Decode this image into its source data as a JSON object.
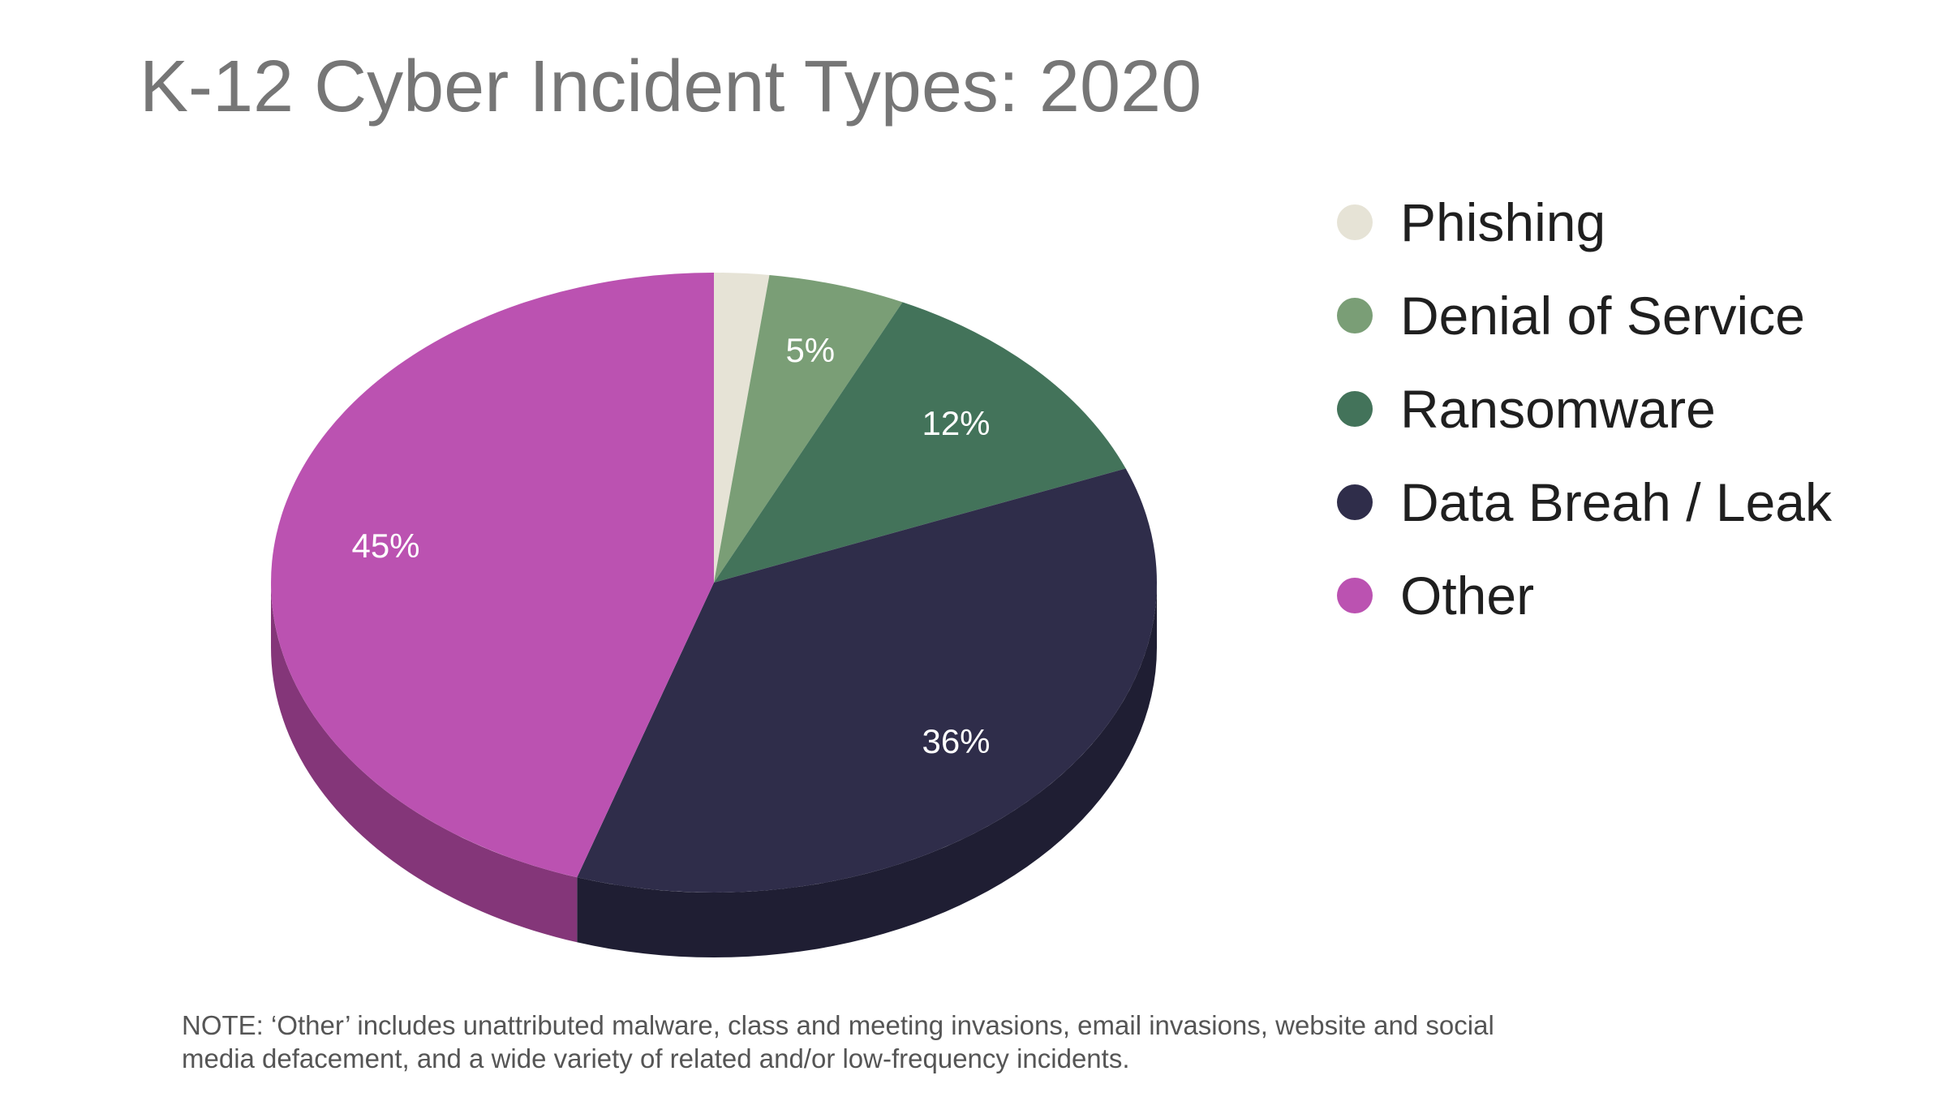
{
  "chart_data": {
    "type": "pie",
    "title": "K-12 Cyber Incident Types: 2020",
    "categories": [
      "Phishing",
      "Denial of Service",
      "Ransomware",
      "Data Breah / Leak",
      "Other"
    ],
    "values": [
      2,
      5,
      12,
      36,
      45
    ],
    "data_labels": [
      "",
      "5%",
      "12%",
      "36%",
      "45%"
    ],
    "colors": [
      "#e6e3d6",
      "#7a9e76",
      "#43735a",
      "#2f2d4a",
      "#bb52b1"
    ],
    "side_colors": [
      "#b8b5a8",
      "#5c7a58",
      "#2f5541",
      "#1f1e33",
      "#843679"
    ],
    "legend": {
      "placement": "right",
      "items": [
        {
          "label": "Phishing",
          "color": "#e6e3d6"
        },
        {
          "label": "Denial of Service",
          "color": "#7a9e76"
        },
        {
          "label": "Ransomware",
          "color": "#43735a"
        },
        {
          "label": "Data Breah / Leak",
          "color": "#2f2d4a"
        },
        {
          "label": "Other",
          "color": "#bb52b1"
        }
      ]
    },
    "note": "NOTE: ‘Other’ includes unattributed malware, class and meeting invasions, email invasions, website and social media defacement, and a wide variety of related and/or low-frequency incidents."
  }
}
